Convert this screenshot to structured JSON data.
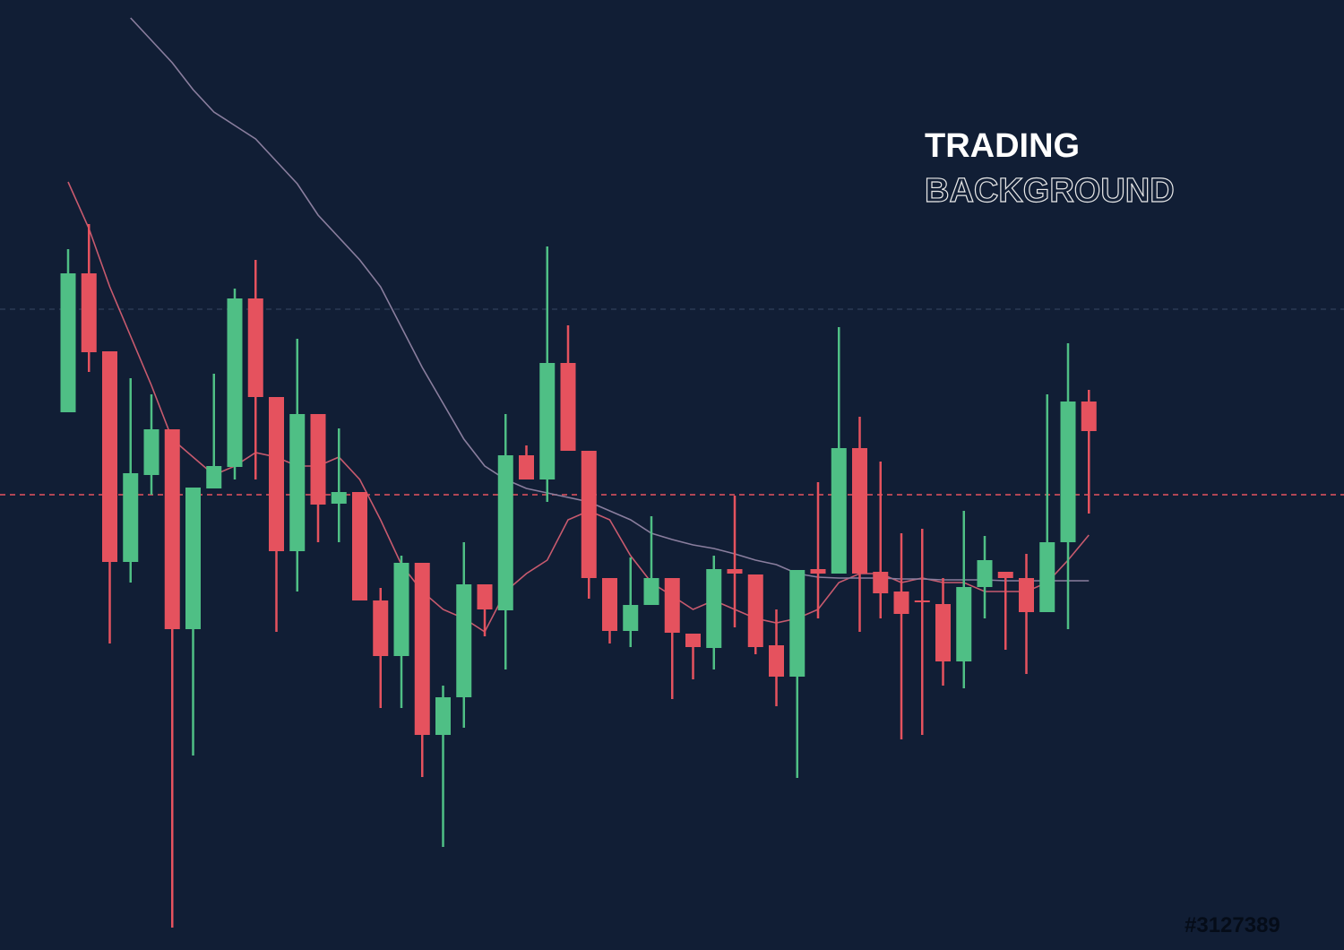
{
  "chart_data": {
    "type": "candlestick",
    "title": "TRADING",
    "subtitle": "BACKGROUND",
    "watermark": "#3127389",
    "ylim": [
      0,
      1060
    ],
    "up_color": "#4fbf85",
    "down_color": "#e5525e",
    "open": [
      600,
      755,
      668,
      433,
      530,
      581,
      358,
      515,
      539,
      727,
      617,
      445,
      598,
      498,
      511,
      390,
      328,
      432,
      240,
      282,
      408,
      379,
      552,
      525,
      655,
      557,
      415,
      356,
      385,
      415,
      353,
      337,
      425,
      419,
      340,
      305,
      425,
      420,
      560,
      422,
      400,
      390,
      386,
      322,
      405,
      422,
      415,
      377,
      455,
      612
    ],
    "high": [
      782,
      810,
      668,
      638,
      620,
      581,
      516,
      643,
      738,
      770,
      617,
      682,
      598,
      582,
      511,
      404,
      440,
      432,
      295,
      455,
      408,
      598,
      563,
      785,
      697,
      557,
      415,
      438,
      484,
      415,
      353,
      440,
      507,
      419,
      380,
      424,
      522,
      695,
      595,
      545,
      465,
      470,
      415,
      490,
      462,
      422,
      442,
      620,
      677,
      625
    ],
    "low": [
      600,
      645,
      342,
      410,
      508,
      25,
      217,
      515,
      525,
      525,
      355,
      400,
      455,
      455,
      390,
      270,
      270,
      193,
      115,
      248,
      350,
      313,
      525,
      500,
      557,
      392,
      342,
      338,
      385,
      280,
      302,
      313,
      360,
      330,
      272,
      192,
      370,
      420,
      355,
      370,
      235,
      240,
      295,
      292,
      370,
      335,
      308,
      377,
      358,
      487
    ],
    "close": [
      755,
      667,
      433,
      532,
      581,
      358,
      516,
      540,
      727,
      617,
      445,
      598,
      497,
      511,
      390,
      328,
      432,
      240,
      282,
      408,
      380,
      552,
      525,
      655,
      557,
      415,
      356,
      385,
      415,
      354,
      338,
      425,
      420,
      338,
      305,
      424,
      420,
      560,
      420,
      398,
      375,
      388,
      322,
      405,
      435,
      415,
      377,
      455,
      612,
      579
    ],
    "series": [
      {
        "color": "#c85a6e",
        "values": [
          857,
          805,
          740,
          685,
          630,
          570,
          550,
          530,
          540,
          555,
          550,
          540,
          540,
          550,
          525,
          480,
          430,
          400,
          380,
          370,
          355,
          400,
          420,
          435,
          480,
          490,
          480,
          440,
          410,
          395,
          380,
          390,
          380,
          370,
          365,
          370,
          380,
          410,
          420,
          420,
          410,
          415,
          410,
          410,
          400,
          400,
          400,
          410,
          435,
          463
        ]
      },
      {
        "color": "#8a7e9e",
        "values": [
          null,
          null,
          null,
          1040,
          1015,
          990,
          960,
          935,
          920,
          905,
          880,
          855,
          820,
          795,
          770,
          740,
          695,
          650,
          610,
          570,
          540,
          525,
          515,
          510,
          505,
          500,
          490,
          480,
          465,
          458,
          452,
          448,
          442,
          435,
          430,
          420,
          416,
          415,
          415,
          415,
          414,
          414,
          413,
          413,
          413,
          412,
          412,
          412,
          412,
          412
        ]
      }
    ],
    "hlines": [
      {
        "value": 508,
        "color": "#e5525e"
      },
      {
        "value": 715,
        "color": "#2a3a55"
      }
    ]
  }
}
